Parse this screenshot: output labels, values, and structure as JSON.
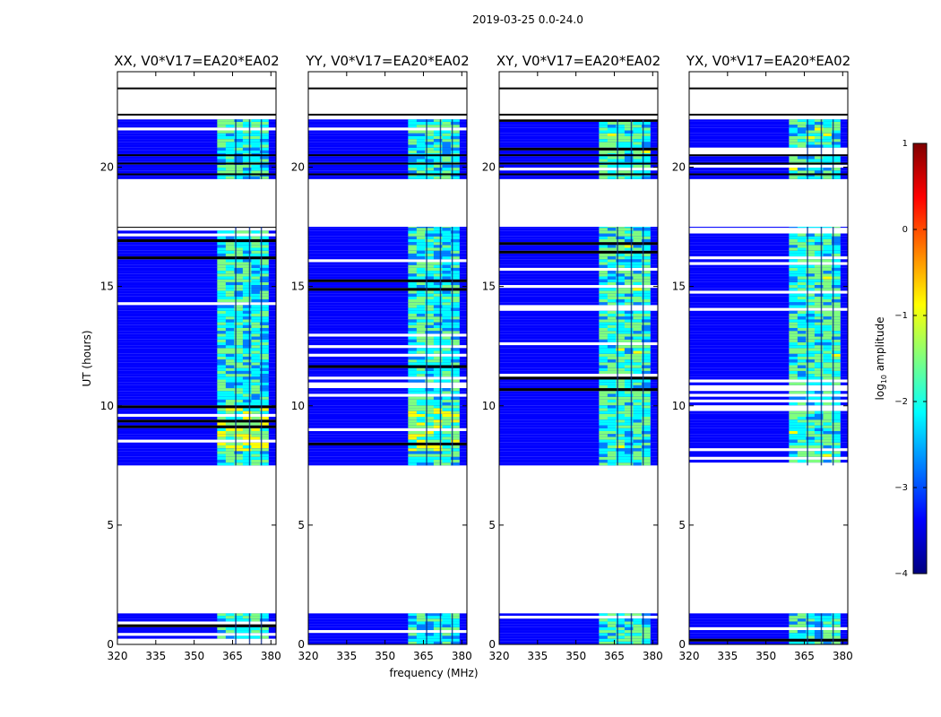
{
  "chart_data": {
    "type": "heatmap",
    "suptitle": "2019-03-25 0.0-24.0",
    "xlabel": "frequency (MHz)",
    "ylabel": "UT (hours)",
    "xlim": [
      320,
      382
    ],
    "ylim": [
      0,
      24
    ],
    "xticks": [
      320,
      335,
      350,
      365,
      380
    ],
    "yticks": [
      0,
      5,
      10,
      15,
      20
    ],
    "panels": [
      {
        "title": "XX, V0*V17=EA20*EA02",
        "polarization": "XX"
      },
      {
        "title": "YY, V0*V17=EA20*EA02",
        "polarization": "YY"
      },
      {
        "title": "XY, V0*V17=EA20*EA02",
        "polarization": "XY"
      },
      {
        "title": "YX, V0*V17=EA20*EA02",
        "polarization": "YX"
      }
    ],
    "data_blocks_ut_hours": [
      [
        0.0,
        1.3
      ],
      [
        7.5,
        17.5
      ],
      [
        19.5,
        22.0
      ]
    ],
    "blank_ut_hours": [
      [
        1.3,
        7.5
      ],
      [
        17.5,
        19.5
      ],
      [
        22.0,
        24.0
      ]
    ],
    "bright_band_mhz": [
      359,
      379
    ],
    "colorbar": {
      "label": "log10 amplitude",
      "label_prefix": "log",
      "label_subscript": "10",
      "label_suffix": " amplitude",
      "min": -4,
      "max": 1,
      "ticks": [
        1,
        0,
        -1,
        -2,
        -3,
        -4
      ],
      "colormap": "jet",
      "colors": [
        "#00007f",
        "#0000ff",
        "#007fff",
        "#00ffff",
        "#7fff7f",
        "#ffff00",
        "#ff7f00",
        "#ff0000",
        "#7f0000"
      ]
    }
  }
}
